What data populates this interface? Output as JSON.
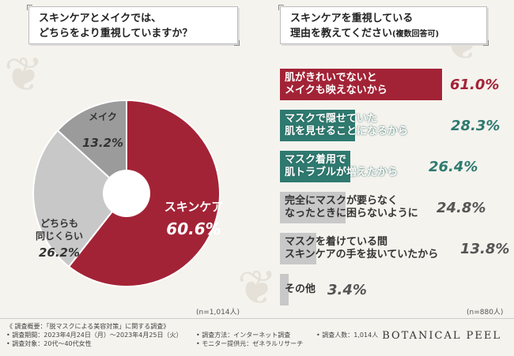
{
  "left": {
    "title_line1": "スキンケアとメイクでは、",
    "title_line2": "どちらをより重視していますか？",
    "n_label": "(n=1,014人)"
  },
  "right": {
    "title_line1": "スキンケアを重視している",
    "title_line2_main": "理由を教えてください",
    "title_line2_sub": "(複数回答可)",
    "n_label": "(n=880人)"
  },
  "colors": {
    "crimson": "#a32336",
    "teal": "#2f7a70",
    "gray": "#c8c8c8",
    "dark_gray": "#9b9b9b",
    "text_gray": "#555555"
  },
  "chart_data": [
    {
      "type": "pie",
      "slices": [
        {
          "label": "スキンケア",
          "value": 60.6,
          "display": "60.6%",
          "color": "#a32336"
        },
        {
          "label": "どちらも同じくらい",
          "value": 26.2,
          "display": "26.2%",
          "color": "#c8c8c8"
        },
        {
          "label": "メイク",
          "value": 13.2,
          "display": "13.2%",
          "color": "#9b9b9b"
        }
      ]
    },
    {
      "type": "bar",
      "orientation": "horizontal",
      "categories": [
        "肌がきれいでないと\nメイクも映えないから",
        "マスクで隠せていた\n肌を見せることになるから",
        "マスク着用で\n肌トラブルが増えたから",
        "完全にマスクが要らなく\nなったときに困らないように",
        "マスクを着けている間\nスキンケアの手を抜いていたから",
        "その他"
      ],
      "values": [
        61.0,
        28.3,
        26.4,
        24.8,
        13.8,
        3.4
      ],
      "display": [
        "61.0%",
        "28.3%",
        "26.4%",
        "24.8%",
        "13.8%",
        "3.4%"
      ]
    }
  ],
  "footer": {
    "overview": "《 調査概要：「脱マスクによる美容対策」に関する調査》",
    "period": "• 調査期間：2023年4月24日（月）〜2023年4月25日（火）",
    "target": "• 調査対象：20代〜40代女性",
    "method": "• 調査方法：インターネット調査",
    "provider": "• モニター提供元：ゼネラルリサーチ",
    "count": "• 調査人数：1,014人",
    "brand": "BOTANICAL PEEL"
  }
}
